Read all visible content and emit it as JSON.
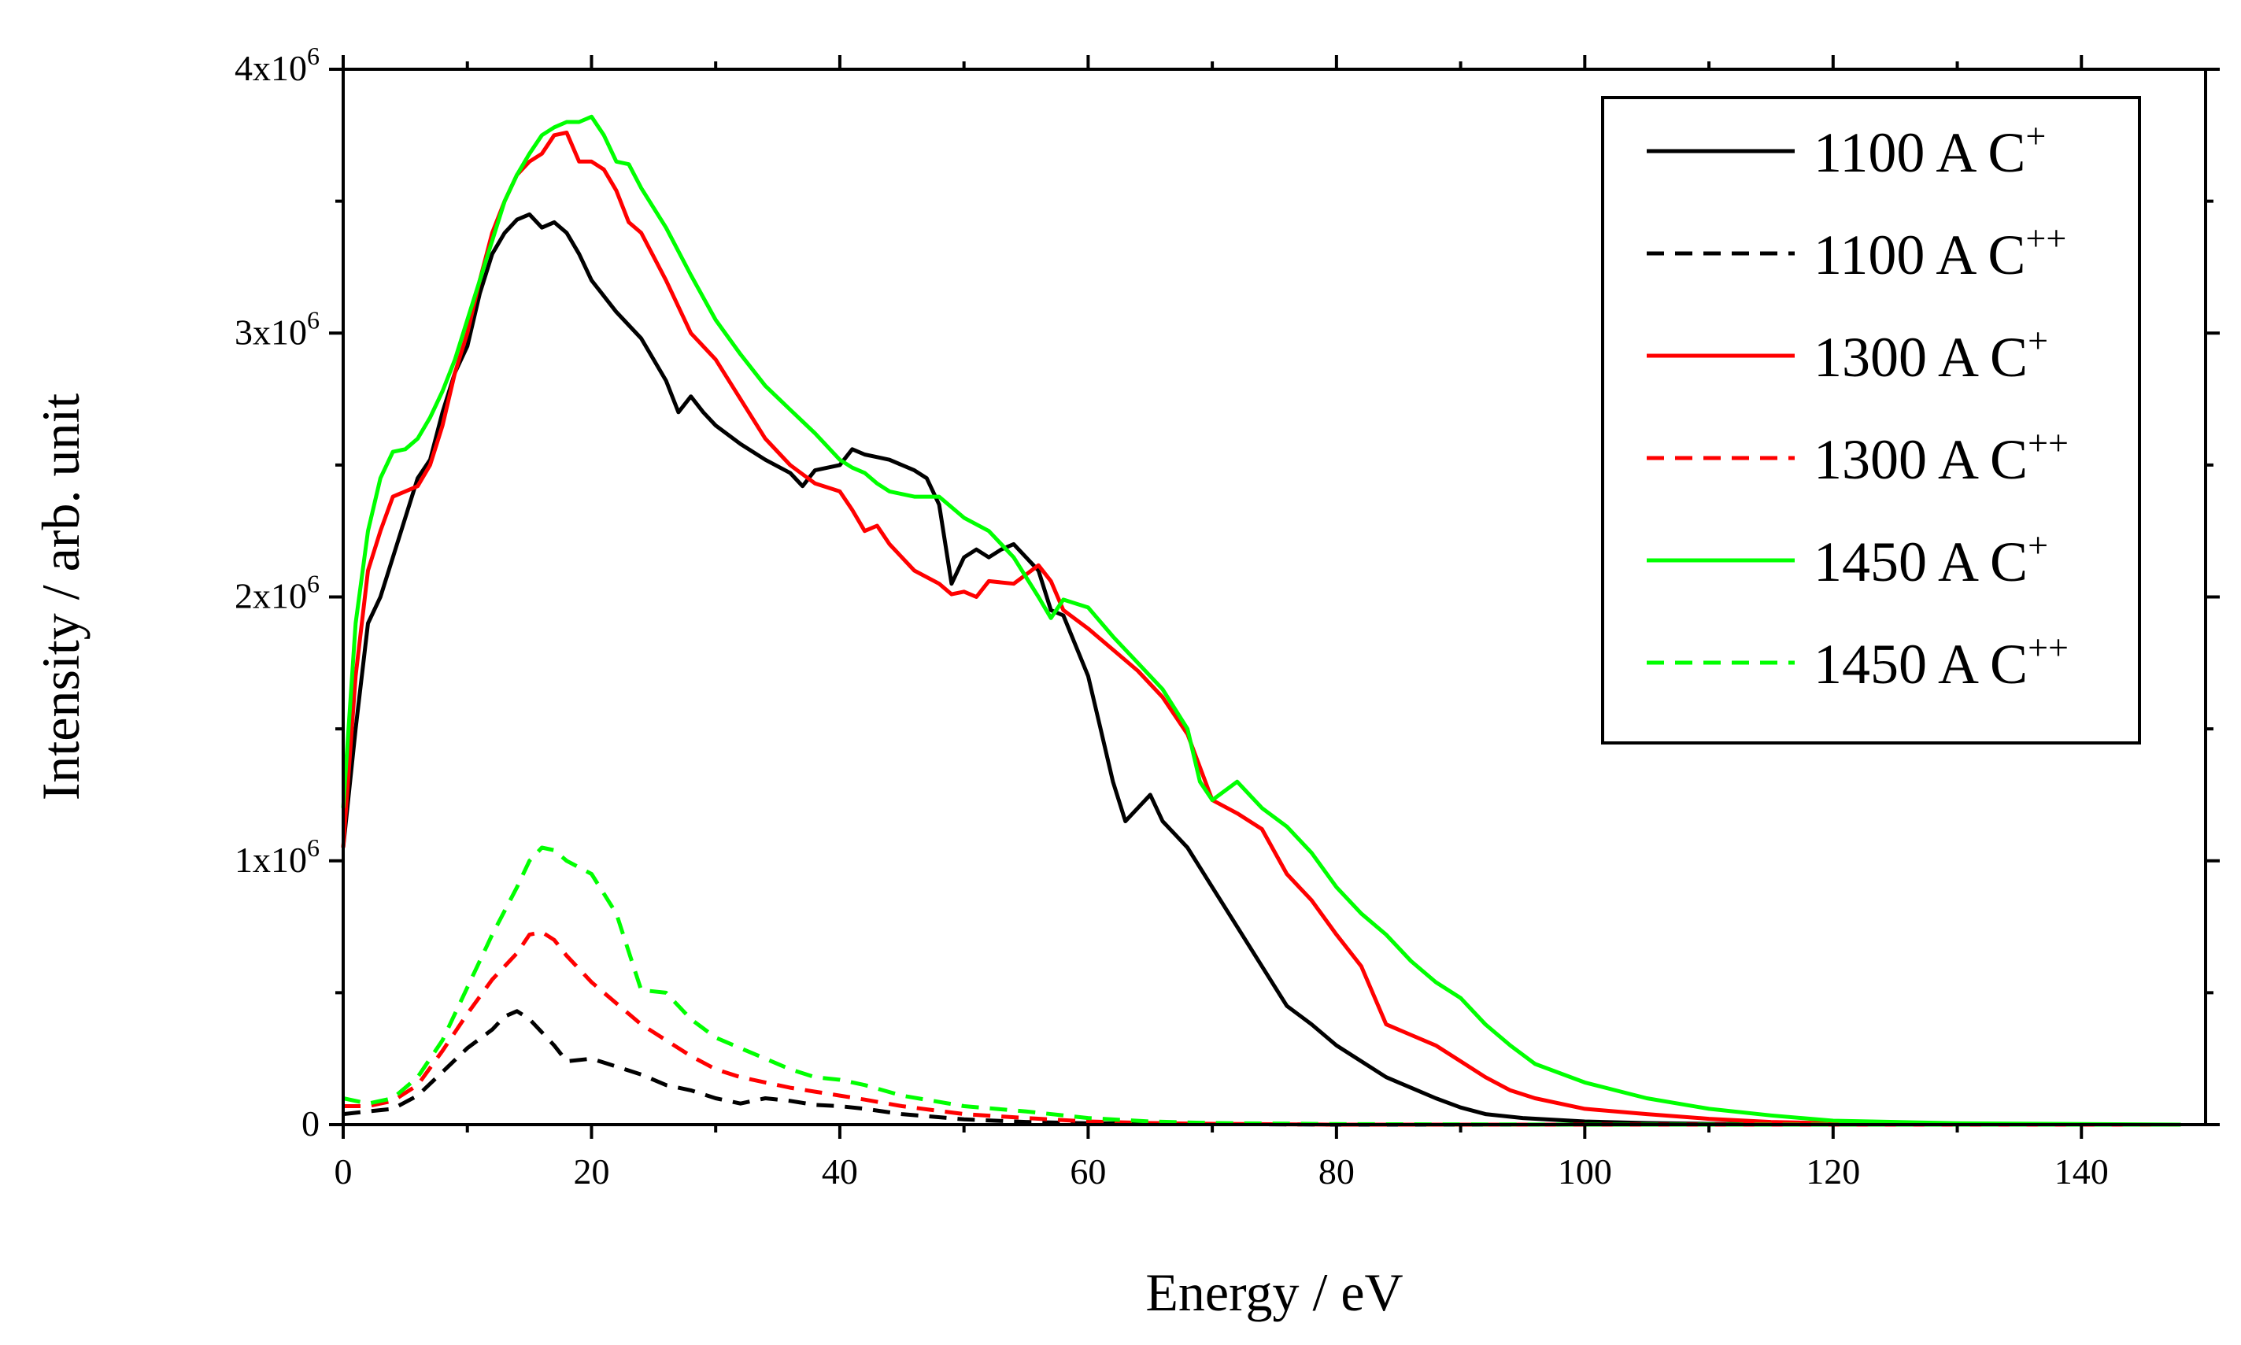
{
  "chart_data": {
    "type": "line",
    "xlabel": "Energy / eV",
    "ylabel": "Intensity / arb. unit",
    "xlim": [
      0,
      150
    ],
    "ylim": [
      0,
      4000000
    ],
    "xticks": [
      0,
      20,
      40,
      60,
      80,
      100,
      120,
      140
    ],
    "xtick_labels": [
      "0",
      "20",
      "40",
      "60",
      "80",
      "100",
      "120",
      "140"
    ],
    "yticks": [
      0,
      1000000,
      2000000,
      3000000,
      4000000
    ],
    "ytick_labels": [
      {
        "base": "0",
        "exp": ""
      },
      {
        "base": "1x10",
        "exp": "6"
      },
      {
        "base": "2x10",
        "exp": "6"
      },
      {
        "base": "3x10",
        "exp": "6"
      },
      {
        "base": "4x10",
        "exp": "6"
      }
    ],
    "grid": false,
    "legend_position": "top-right",
    "series": [
      {
        "name": "1100 A C",
        "sup": "+",
        "color": "#000000",
        "dash": "solid",
        "x": [
          0,
          1,
          2,
          3,
          4,
          5,
          6,
          7,
          8,
          9,
          10,
          11,
          12,
          13,
          14,
          15,
          16,
          17,
          18,
          19,
          20,
          22,
          24,
          26,
          27,
          28,
          29,
          30,
          32,
          34,
          36,
          37,
          38,
          40,
          41,
          42,
          43,
          44,
          46,
          47,
          48,
          49,
          50,
          51,
          52,
          53,
          54,
          56,
          57,
          58,
          60,
          61,
          62,
          63,
          64,
          65,
          66,
          67,
          68,
          70,
          72,
          74,
          76,
          78,
          80,
          82,
          84,
          86,
          88,
          90,
          92,
          95,
          100,
          105,
          110,
          120,
          130,
          148
        ],
        "y": [
          1050000,
          1500000,
          1900000,
          2000000,
          2150000,
          2300000,
          2450000,
          2520000,
          2700000,
          2850000,
          2950000,
          3150000,
          3300000,
          3380000,
          3430000,
          3450000,
          3400000,
          3420000,
          3380000,
          3300000,
          3200000,
          3080000,
          2980000,
          2820000,
          2700000,
          2760000,
          2700000,
          2650000,
          2580000,
          2520000,
          2470000,
          2420000,
          2480000,
          2500000,
          2560000,
          2540000,
          2530000,
          2520000,
          2480000,
          2450000,
          2350000,
          2050000,
          2150000,
          2180000,
          2150000,
          2180000,
          2200000,
          2100000,
          1950000,
          1930000,
          1700000,
          1500000,
          1300000,
          1150000,
          1200000,
          1250000,
          1150000,
          1100000,
          1050000,
          900000,
          750000,
          600000,
          450000,
          380000,
          300000,
          240000,
          180000,
          140000,
          100000,
          65000,
          40000,
          25000,
          12000,
          6000,
          3000,
          1000,
          0,
          0
        ]
      },
      {
        "name": "1100 A C",
        "sup": "++",
        "color": "#000000",
        "dash": "dashed",
        "x": [
          0,
          2,
          4,
          6,
          8,
          10,
          12,
          13,
          14,
          15,
          16,
          17,
          18,
          20,
          22,
          24,
          26,
          28,
          30,
          32,
          34,
          36,
          38,
          40,
          42,
          45,
          50,
          55,
          60,
          70,
          80,
          100,
          148
        ],
        "y": [
          40000,
          50000,
          60000,
          110000,
          200000,
          290000,
          360000,
          410000,
          430000,
          400000,
          350000,
          300000,
          240000,
          250000,
          220000,
          190000,
          150000,
          130000,
          100000,
          80000,
          100000,
          90000,
          75000,
          70000,
          60000,
          40000,
          20000,
          10000,
          5000,
          2000,
          0,
          0,
          0
        ]
      },
      {
        "name": "1300 A C",
        "sup": "+",
        "color": "#ff0000",
        "dash": "solid",
        "x": [
          0,
          1,
          2,
          3,
          4,
          5,
          6,
          7,
          8,
          9,
          10,
          11,
          12,
          13,
          14,
          15,
          16,
          17,
          18,
          19,
          20,
          21,
          22,
          23,
          24,
          26,
          28,
          30,
          32,
          34,
          36,
          38,
          40,
          41,
          42,
          43,
          44,
          46,
          48,
          49,
          50,
          51,
          52,
          54,
          56,
          57,
          58,
          60,
          62,
          64,
          66,
          68,
          70,
          72,
          74,
          76,
          78,
          80,
          82,
          84,
          86,
          88,
          90,
          92,
          94,
          96,
          100,
          105,
          110,
          115,
          120,
          130,
          148
        ],
        "y": [
          1050000,
          1700000,
          2100000,
          2250000,
          2380000,
          2400000,
          2420000,
          2500000,
          2650000,
          2850000,
          3000000,
          3200000,
          3380000,
          3500000,
          3600000,
          3650000,
          3680000,
          3750000,
          3760000,
          3650000,
          3650000,
          3620000,
          3540000,
          3420000,
          3380000,
          3200000,
          3000000,
          2900000,
          2750000,
          2600000,
          2500000,
          2430000,
          2400000,
          2330000,
          2250000,
          2270000,
          2200000,
          2100000,
          2050000,
          2010000,
          2020000,
          2000000,
          2060000,
          2050000,
          2120000,
          2060000,
          1950000,
          1880000,
          1800000,
          1720000,
          1620000,
          1480000,
          1230000,
          1180000,
          1120000,
          950000,
          850000,
          720000,
          600000,
          380000,
          340000,
          300000,
          240000,
          180000,
          130000,
          100000,
          60000,
          40000,
          22000,
          10000,
          5000,
          0,
          0
        ]
      },
      {
        "name": "1300 A C",
        "sup": "++",
        "color": "#ff0000",
        "dash": "dashed",
        "x": [
          0,
          2,
          4,
          6,
          8,
          10,
          12,
          14,
          15,
          16,
          17,
          18,
          20,
          22,
          24,
          26,
          28,
          30,
          32,
          34,
          36,
          38,
          40,
          42,
          45,
          50,
          55,
          60,
          65,
          70,
          80,
          100,
          148
        ],
        "y": [
          70000,
          70000,
          90000,
          150000,
          280000,
          420000,
          550000,
          650000,
          720000,
          730000,
          700000,
          640000,
          540000,
          460000,
          380000,
          320000,
          260000,
          210000,
          180000,
          160000,
          140000,
          125000,
          110000,
          95000,
          70000,
          40000,
          25000,
          12000,
          6000,
          3000,
          0,
          0,
          0
        ]
      },
      {
        "name": "1450 A C",
        "sup": "+",
        "color": "#00ff00",
        "dash": "solid",
        "x": [
          0,
          1,
          2,
          3,
          4,
          5,
          6,
          7,
          8,
          9,
          10,
          11,
          12,
          13,
          14,
          15,
          16,
          17,
          18,
          19,
          20,
          21,
          22,
          23,
          24,
          26,
          28,
          30,
          32,
          34,
          36,
          38,
          40,
          41,
          42,
          43,
          44,
          46,
          48,
          50,
          52,
          54,
          56,
          57,
          58,
          60,
          62,
          64,
          66,
          68,
          69,
          70,
          72,
          74,
          76,
          78,
          80,
          82,
          84,
          86,
          88,
          90,
          92,
          94,
          96,
          100,
          105,
          110,
          115,
          120,
          130,
          148
        ],
        "y": [
          1200000,
          1900000,
          2250000,
          2450000,
          2550000,
          2560000,
          2600000,
          2680000,
          2780000,
          2900000,
          3050000,
          3200000,
          3350000,
          3500000,
          3600000,
          3680000,
          3750000,
          3780000,
          3800000,
          3800000,
          3820000,
          3750000,
          3650000,
          3640000,
          3550000,
          3400000,
          3220000,
          3050000,
          2920000,
          2800000,
          2710000,
          2620000,
          2520000,
          2490000,
          2470000,
          2430000,
          2400000,
          2380000,
          2380000,
          2300000,
          2250000,
          2150000,
          2000000,
          1920000,
          1990000,
          1960000,
          1850000,
          1750000,
          1650000,
          1500000,
          1300000,
          1230000,
          1300000,
          1200000,
          1130000,
          1030000,
          900000,
          800000,
          720000,
          620000,
          540000,
          480000,
          380000,
          300000,
          230000,
          160000,
          100000,
          60000,
          35000,
          15000,
          5000,
          0
        ]
      },
      {
        "name": "1450 A C",
        "sup": "++",
        "color": "#00ff00",
        "dash": "dashed",
        "x": [
          0,
          2,
          4,
          6,
          8,
          10,
          12,
          14,
          15,
          16,
          17,
          18,
          20,
          22,
          24,
          26,
          28,
          30,
          32,
          34,
          36,
          38,
          40,
          42,
          45,
          50,
          55,
          60,
          65,
          70,
          80,
          100,
          148
        ],
        "y": [
          100000,
          80000,
          100000,
          180000,
          320000,
          520000,
          720000,
          900000,
          1000000,
          1050000,
          1040000,
          1000000,
          950000,
          800000,
          510000,
          500000,
          400000,
          330000,
          290000,
          250000,
          210000,
          180000,
          170000,
          150000,
          110000,
          70000,
          50000,
          25000,
          12000,
          6000,
          2000,
          0,
          0
        ]
      }
    ]
  }
}
